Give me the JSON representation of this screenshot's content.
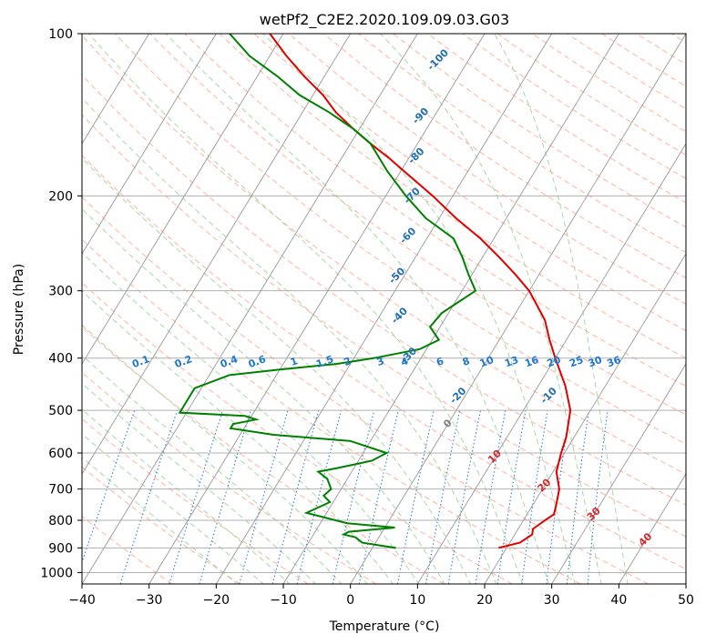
{
  "chart_data": {
    "type": "line",
    "subtype": "skew-t log-p diagram",
    "title": "wetPf2_C2E2.2020.109.09.03.G03",
    "xlabel": "Temperature (°C)",
    "ylabel": "Pressure (hPa)",
    "xlim": [
      -40,
      50
    ],
    "ylim": [
      1050,
      100
    ],
    "x_ticks": [
      -40,
      -30,
      -20,
      -10,
      0,
      10,
      20,
      30,
      40,
      50
    ],
    "y_ticks": [
      100,
      200,
      300,
      400,
      500,
      600,
      700,
      800,
      900,
      1000
    ],
    "grid": true,
    "colors": {
      "temperature": "#e00000",
      "dewpoint": "#008000",
      "isotherm": "#999999",
      "dry_adiabat": "#ffb3a0",
      "moist_adiabat": "#a8d8a8",
      "mixing_ratio": "#1f77d0",
      "theta_label": "#1f6fb0",
      "isotherm_label_warm": "#d62728",
      "isotherm_label_zero": "#808080"
    },
    "isotherm_labels": [
      {
        "text": "-100",
        "value": -100
      },
      {
        "text": "-90",
        "value": -90
      },
      {
        "text": "-80",
        "value": -80
      },
      {
        "text": "-70",
        "value": -70
      },
      {
        "text": "-60",
        "value": -60
      },
      {
        "text": "-50",
        "value": -50
      },
      {
        "text": "-40",
        "value": -40
      },
      {
        "text": "-30",
        "value": -30
      },
      {
        "text": "-20",
        "value": -20
      },
      {
        "text": "-10",
        "value": -10
      },
      {
        "text": "0",
        "value": 0
      },
      {
        "text": "10",
        "value": 10
      },
      {
        "text": "20",
        "value": 20
      },
      {
        "text": "30",
        "value": 30
      },
      {
        "text": "40",
        "value": 40
      }
    ],
    "mixing_ratio_labels": [
      "0.1",
      "0.2",
      "0.4",
      "0.6",
      "1",
      "1.5",
      "2",
      "3",
      "4",
      "6",
      "8",
      "10",
      "13",
      "16",
      "20",
      "25",
      "30",
      "36"
    ],
    "series": [
      {
        "name": "Temperature",
        "points": [
          {
            "p": 900,
            "t": 18.8
          },
          {
            "p": 880,
            "t": 21.5
          },
          {
            "p": 850,
            "t": 22.6
          },
          {
            "p": 830,
            "t": 22.2
          },
          {
            "p": 800,
            "t": 23.2
          },
          {
            "p": 780,
            "t": 24.0
          },
          {
            "p": 750,
            "t": 23.5
          },
          {
            "p": 700,
            "t": 22.5
          },
          {
            "p": 650,
            "t": 20.5
          },
          {
            "p": 600,
            "t": 19.5
          },
          {
            "p": 560,
            "t": 18.8
          },
          {
            "p": 500,
            "t": 17.0
          },
          {
            "p": 450,
            "t": 14.0
          },
          {
            "p": 400,
            "t": 10.0
          },
          {
            "p": 370,
            "t": 7.5
          },
          {
            "p": 340,
            "t": 5.0
          },
          {
            "p": 300,
            "t": 0.0
          },
          {
            "p": 280,
            "t": -3.5
          },
          {
            "p": 260,
            "t": -7.5
          },
          {
            "p": 240,
            "t": -12.0
          },
          {
            "p": 220,
            "t": -17.5
          },
          {
            "p": 200,
            "t": -23.0
          },
          {
            "p": 180,
            "t": -29.5
          },
          {
            "p": 170,
            "t": -33.0
          },
          {
            "p": 160,
            "t": -37.0
          },
          {
            "p": 150,
            "t": -41.0
          },
          {
            "p": 140,
            "t": -45.0
          },
          {
            "p": 130,
            "t": -48.5
          },
          {
            "p": 120,
            "t": -53.0
          },
          {
            "p": 110,
            "t": -57.5
          },
          {
            "p": 100,
            "t": -62.0
          }
        ]
      },
      {
        "name": "Dewpoint",
        "points": [
          {
            "p": 900,
            "t": 3.5
          },
          {
            "p": 880,
            "t": -2.0
          },
          {
            "p": 860,
            "t": -3.5
          },
          {
            "p": 850,
            "t": -5.5
          },
          {
            "p": 840,
            "t": -5.0
          },
          {
            "p": 825,
            "t": 1.5
          },
          {
            "p": 810,
            "t": -6.0
          },
          {
            "p": 775,
            "t": -13.0
          },
          {
            "p": 740,
            "t": -10.5
          },
          {
            "p": 720,
            "t": -12.0
          },
          {
            "p": 700,
            "t": -11.5
          },
          {
            "p": 670,
            "t": -13.0
          },
          {
            "p": 650,
            "t": -15.0
          },
          {
            "p": 640,
            "t": -12.5
          },
          {
            "p": 620,
            "t": -8.0
          },
          {
            "p": 600,
            "t": -6.5
          },
          {
            "p": 570,
            "t": -13.0
          },
          {
            "p": 555,
            "t": -25.0
          },
          {
            "p": 540,
            "t": -32.0
          },
          {
            "p": 530,
            "t": -32.0
          },
          {
            "p": 520,
            "t": -29.0
          },
          {
            "p": 512,
            "t": -31.0
          },
          {
            "p": 505,
            "t": -41.0
          },
          {
            "p": 455,
            "t": -41.0
          },
          {
            "p": 430,
            "t": -37.0
          },
          {
            "p": 420,
            "t": -30.0
          },
          {
            "p": 410,
            "t": -22.0
          },
          {
            "p": 400,
            "t": -17.0
          },
          {
            "p": 385,
            "t": -11.0
          },
          {
            "p": 370,
            "t": -9.0
          },
          {
            "p": 350,
            "t": -11.5
          },
          {
            "p": 330,
            "t": -11.0
          },
          {
            "p": 300,
            "t": -8.0
          },
          {
            "p": 280,
            "t": -10.5
          },
          {
            "p": 260,
            "t": -13.0
          },
          {
            "p": 240,
            "t": -16.0
          },
          {
            "p": 220,
            "t": -22.0
          },
          {
            "p": 200,
            "t": -27.0
          },
          {
            "p": 180,
            "t": -32.0
          },
          {
            "p": 160,
            "t": -37.0
          },
          {
            "p": 150,
            "t": -41.0
          },
          {
            "p": 140,
            "t": -46.0
          },
          {
            "p": 130,
            "t": -52.0
          },
          {
            "p": 120,
            "t": -57.0
          },
          {
            "p": 110,
            "t": -63.0
          },
          {
            "p": 100,
            "t": -68.0
          }
        ]
      }
    ]
  }
}
